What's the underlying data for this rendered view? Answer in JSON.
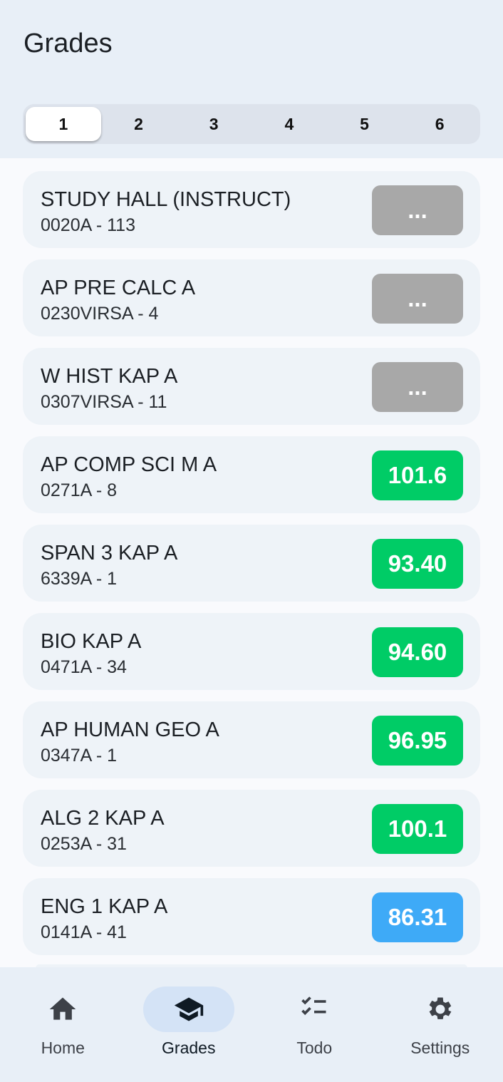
{
  "header": {
    "title": "Grades"
  },
  "periods": {
    "items": [
      "1",
      "2",
      "3",
      "4",
      "5",
      "6"
    ],
    "selected": "1"
  },
  "courses": [
    {
      "name": "STUDY HALL (INSTRUCT)",
      "code": "0020A - 113",
      "grade": "...",
      "color": "#a8a8a8"
    },
    {
      "name": "AP PRE CALC A",
      "code": "0230VIRSA - 4",
      "grade": "...",
      "color": "#a8a8a8"
    },
    {
      "name": "W HIST KAP A",
      "code": "0307VIRSA - 11",
      "grade": "...",
      "color": "#a8a8a8"
    },
    {
      "name": "AP COMP SCI M A",
      "code": "0271A - 8",
      "grade": "101.6",
      "color": "#00cc66"
    },
    {
      "name": "SPAN 3 KAP A",
      "code": "6339A - 1",
      "grade": "93.40",
      "color": "#00cc66"
    },
    {
      "name": "BIO KAP A",
      "code": "0471A - 34",
      "grade": "94.60",
      "color": "#00cc66"
    },
    {
      "name": "AP HUMAN GEO A",
      "code": "0347A - 1",
      "grade": "96.95",
      "color": "#00cc66"
    },
    {
      "name": "ALG 2 KAP A",
      "code": "0253A - 31",
      "grade": "100.1",
      "color": "#00cc66"
    },
    {
      "name": "ENG 1 KAP A",
      "code": "0141A - 41",
      "grade": "86.31",
      "color": "#3eaaf7"
    }
  ],
  "nav": [
    {
      "label": "Home",
      "icon": "home-icon"
    },
    {
      "label": "Grades",
      "icon": "graduation-cap-icon",
      "active": true
    },
    {
      "label": "Todo",
      "icon": "checklist-icon"
    },
    {
      "label": "Settings",
      "icon": "gear-icon"
    }
  ]
}
